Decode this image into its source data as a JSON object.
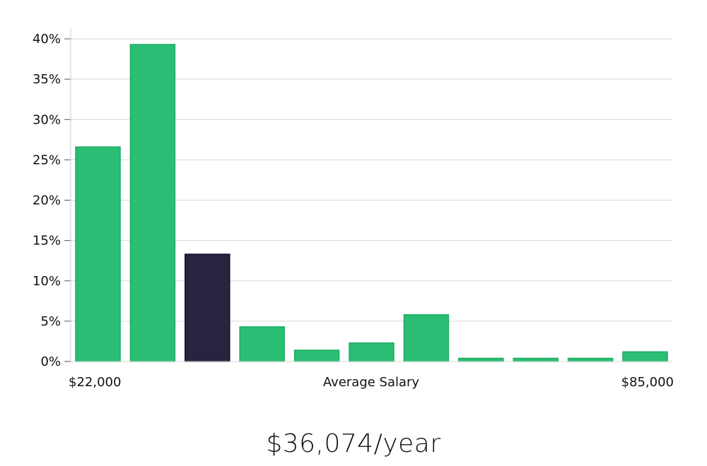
{
  "chart_data": {
    "type": "bar",
    "xlabel": "Average Salary",
    "x_min_label": "$22,000",
    "x_max_label": "$85,000",
    "ylim": [
      0,
      40
    ],
    "y_ticks": [
      "0%",
      "5%",
      "10%",
      "15%",
      "20%",
      "25%",
      "30%",
      "35%",
      "40%"
    ],
    "grid": true,
    "values": [
      26.6,
      39.3,
      13.3,
      4.3,
      1.4,
      2.3,
      5.8,
      0.4,
      0.4,
      0.4,
      1.2
    ],
    "highlight_index": 2,
    "colors": {
      "bar": "#2abd73",
      "bar_border": "#1fae66",
      "highlight": "#27243f",
      "highlight_border": "#120f2e",
      "grid": "#d9d9d9",
      "axis": "#cccccc"
    }
  },
  "headline": "$36,074/year"
}
